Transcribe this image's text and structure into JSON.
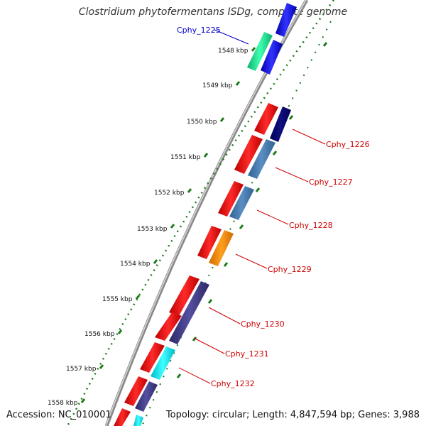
{
  "title": "Clostridium phytofermentans ISDg, complete genome",
  "accession": "Accession: NC_010001",
  "topology": "Topology: circular; Length: 4,847,594 bp; Genes: 3,988",
  "colors": {
    "backbone": "#8a8a8a",
    "tick": "#1a7a1a",
    "label_red": "#cc0000",
    "label_blue": "#0000cc"
  },
  "chart_data": {
    "type": "genome-map",
    "kbp_ticks": [
      "1548 kbp",
      "1549 kbp",
      "1550 kbp",
      "1551 kbp",
      "1552 kbp",
      "1553 kbp",
      "1554 kbp",
      "1555 kbp",
      "1556 kbp",
      "1557 kbp",
      "1558 kbp"
    ],
    "labeled_genes": [
      {
        "name": "Cphy_1225",
        "color": "#0000cc"
      },
      {
        "name": "Cphy_1226",
        "color": "#cc0000"
      },
      {
        "name": "Cphy_1227",
        "color": "#cc0000"
      },
      {
        "name": "Cphy_1228",
        "color": "#cc0000"
      },
      {
        "name": "Cphy_1229",
        "color": "#cc0000"
      },
      {
        "name": "Cphy_1230",
        "color": "#cc0000"
      },
      {
        "name": "Cphy_1231",
        "color": "#cc0000"
      },
      {
        "name": "Cphy_1232",
        "color": "#cc0000"
      }
    ]
  }
}
